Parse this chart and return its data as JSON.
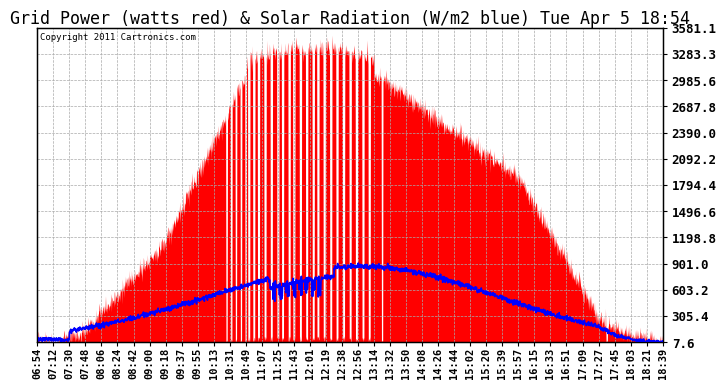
{
  "title": "Grid Power (watts red) & Solar Radiation (W/m2 blue) Tue Apr 5 18:54",
  "copyright": "Copyright 2011 Cartronics.com",
  "background_color": "#ffffff",
  "plot_bg_color": "#ffffff",
  "yticks": [
    7.6,
    305.4,
    603.2,
    901.0,
    1198.8,
    1496.6,
    1794.4,
    2092.2,
    2390.0,
    2687.8,
    2985.6,
    3283.3,
    3581.1
  ],
  "ymin": 7.6,
  "ymax": 3581.1,
  "xtick_labels": [
    "06:54",
    "07:12",
    "07:30",
    "07:48",
    "08:06",
    "08:24",
    "08:42",
    "09:00",
    "09:18",
    "09:37",
    "09:55",
    "10:13",
    "10:31",
    "10:49",
    "11:07",
    "11:25",
    "11:43",
    "12:01",
    "12:19",
    "12:38",
    "12:56",
    "13:14",
    "13:32",
    "13:50",
    "14:08",
    "14:26",
    "14:44",
    "15:02",
    "15:20",
    "15:39",
    "15:57",
    "16:15",
    "16:33",
    "16:51",
    "17:09",
    "17:27",
    "17:45",
    "18:03",
    "18:21",
    "18:39"
  ],
  "grid_color": "#aaaaaa",
  "red_fill_color": "#ff0000",
  "blue_line_color": "#0000ff",
  "title_fontsize": 12,
  "tick_fontsize": 7.5,
  "ylabel_right_fontsize": 9
}
